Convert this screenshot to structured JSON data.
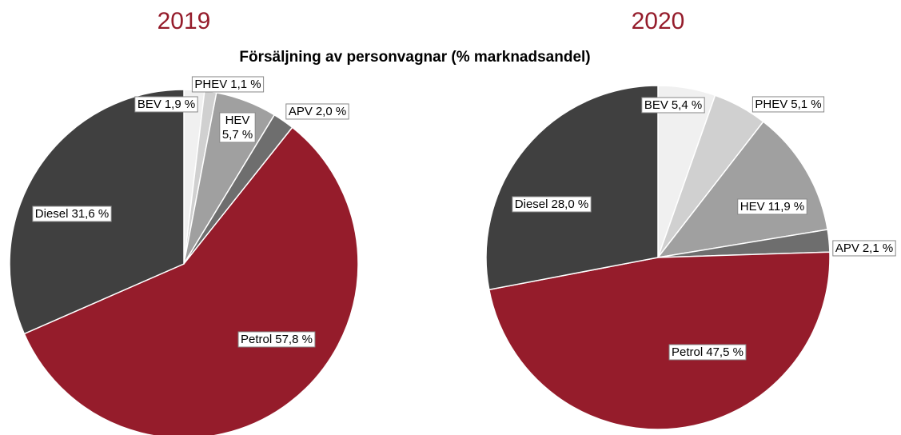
{
  "title": "Försäljning av personvagnar (% marknadsandel)",
  "chart_data": [
    {
      "type": "pie",
      "title": "2019",
      "categories": [
        "BEV",
        "PHEV",
        "HEV",
        "APV",
        "Petrol",
        "Diesel"
      ],
      "values": [
        1.9,
        1.1,
        5.7,
        2.0,
        57.8,
        31.6
      ],
      "value_labels": [
        "1,9 %",
        "1,1 %",
        "5,7 %",
        "2,0 %",
        "57,8 %",
        "31,6 %"
      ],
      "colors": [
        "#f0f0f0",
        "#d0d0d0",
        "#a0a0a0",
        "#6e6e6e",
        "#951c2b",
        "#404040"
      ]
    },
    {
      "type": "pie",
      "title": "2020",
      "categories": [
        "BEV",
        "PHEV",
        "HEV",
        "APV",
        "Petrol",
        "Diesel"
      ],
      "values": [
        5.4,
        5.1,
        11.9,
        2.1,
        47.5,
        28.0
      ],
      "value_labels": [
        "5,4 %",
        "5,1 %",
        "11,9 %",
        "2,1 %",
        "47,5 %",
        "28,0 %"
      ],
      "colors": [
        "#f0f0f0",
        "#d0d0d0",
        "#a0a0a0",
        "#6e6e6e",
        "#951c2b",
        "#404040"
      ]
    }
  ]
}
